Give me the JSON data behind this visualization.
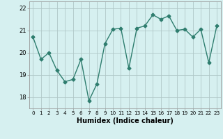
{
  "x": [
    0,
    1,
    2,
    3,
    4,
    5,
    6,
    7,
    8,
    9,
    10,
    11,
    12,
    13,
    14,
    15,
    16,
    17,
    18,
    19,
    20,
    21,
    22,
    23
  ],
  "y": [
    20.7,
    19.7,
    20.0,
    19.2,
    18.7,
    18.8,
    19.7,
    17.85,
    18.6,
    20.4,
    21.05,
    21.1,
    19.3,
    21.1,
    21.2,
    21.7,
    21.5,
    21.65,
    21.0,
    21.05,
    20.7,
    21.05,
    19.55,
    21.2
  ],
  "xlabel": "Humidex (Indice chaleur)",
  "ylim": [
    17.5,
    22.3
  ],
  "xlim": [
    -0.5,
    23.5
  ],
  "yticks": [
    18,
    19,
    20,
    21,
    22
  ],
  "xticks": [
    0,
    1,
    2,
    3,
    4,
    5,
    6,
    7,
    8,
    9,
    10,
    11,
    12,
    13,
    14,
    15,
    16,
    17,
    18,
    19,
    20,
    21,
    22,
    23
  ],
  "xtick_labels": [
    "0",
    "1",
    "2",
    "3",
    "4",
    "5",
    "6",
    "7",
    "8",
    "9",
    "10",
    "11",
    "12",
    "13",
    "14",
    "15",
    "16",
    "17",
    "18",
    "19",
    "20",
    "21",
    "22",
    "23"
  ],
  "line_color": "#2e7d6e",
  "bg_color": "#d6f0f0",
  "grid_color": "#b0c8c8",
  "marker": "D",
  "marker_size": 2.5,
  "linewidth": 1.0,
  "fig_width": 3.2,
  "fig_height": 2.0,
  "dpi": 100
}
